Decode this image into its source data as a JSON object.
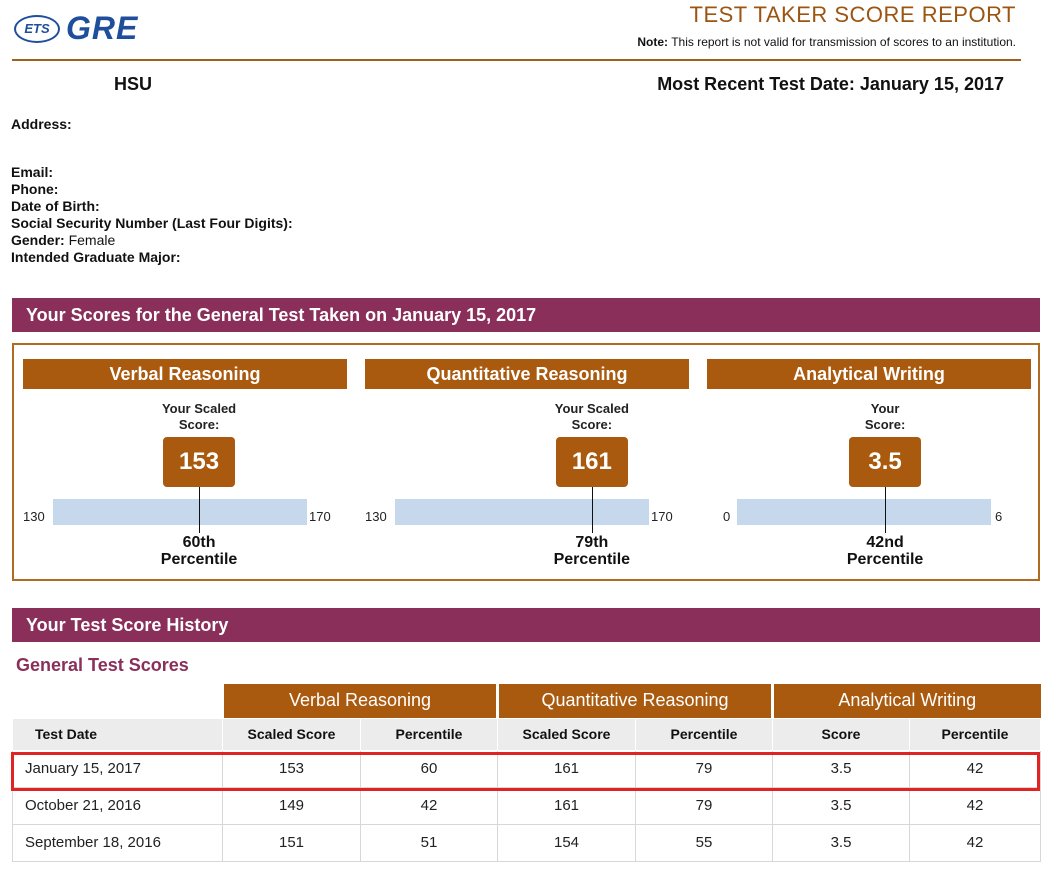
{
  "header": {
    "logo_ets": "ETS",
    "logo_gre": "GRE",
    "title": "TEST TAKER SCORE REPORT",
    "note_label": "Note:",
    "note_text": "This report is not valid for transmission of scores to an institution."
  },
  "taker": {
    "name": "HSU",
    "recent_date_label": "Most Recent Test Date: January 15, 2017"
  },
  "info": {
    "address_label": "Address:",
    "email_label": "Email:",
    "phone_label": "Phone:",
    "dob_label": "Date of Birth:",
    "ssn_label": "Social Security Number (Last Four Digits):",
    "gender_label": "Gender:",
    "gender_value": "Female",
    "major_label": "Intended Graduate Major:"
  },
  "scores_section": {
    "title": "Your Scores for the General Test Taken on January 15, 2017",
    "cards": [
      {
        "title": "Verbal Reasoning",
        "score_label_1": "Your Scaled",
        "score_label_2": "Score:",
        "score": "153",
        "min": "130",
        "max": "170",
        "fraction": 0.575,
        "percentile_1": "60th",
        "percentile_2": "Percentile"
      },
      {
        "title": "Quantitative Reasoning",
        "score_label_1": "Your Scaled",
        "score_label_2": "Score:",
        "score": "161",
        "min": "130",
        "max": "170",
        "fraction": 0.775,
        "percentile_1": "79th",
        "percentile_2": "Percentile"
      },
      {
        "title": "Analytical Writing",
        "score_label_1": "Your",
        "score_label_2": "Score:",
        "score": "3.5",
        "min": "0",
        "max": "6",
        "fraction": 0.583,
        "percentile_1": "42nd",
        "percentile_2": "Percentile"
      }
    ]
  },
  "history": {
    "title": "Your Test Score History",
    "subtitle": "General Test Scores",
    "groups": [
      "Verbal Reasoning",
      "Quantitative Reasoning",
      "Analytical Writing"
    ],
    "columns": [
      "Test Date",
      "Scaled Score",
      "Percentile",
      "Scaled Score",
      "Percentile",
      "Score",
      "Percentile"
    ],
    "rows": [
      [
        "January 15, 2017",
        "153",
        "60",
        "161",
        "79",
        "3.5",
        "42"
      ],
      [
        "October 21, 2016",
        "149",
        "42",
        "161",
        "79",
        "3.5",
        "42"
      ],
      [
        "September 18, 2016",
        "151",
        "51",
        "154",
        "55",
        "3.5",
        "42"
      ]
    ]
  }
}
